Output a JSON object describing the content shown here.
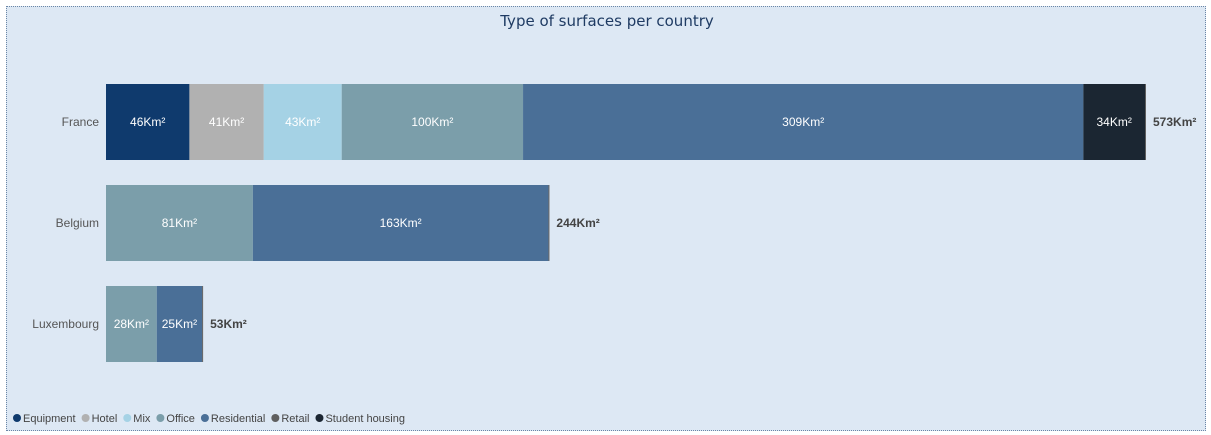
{
  "chart_data": {
    "type": "bar",
    "orientation": "horizontal",
    "stacked": true,
    "title": "Type of surfaces per country",
    "unit": "Km²",
    "categories": [
      "France",
      "Belgium",
      "Luxembourg"
    ],
    "series": [
      {
        "name": "Equipment",
        "color": "#0f3a6d",
        "label_color": "#ffffff",
        "values": [
          46,
          0,
          0
        ]
      },
      {
        "name": "Hotel",
        "color": "#b1b1b1",
        "label_color": "#ffffff",
        "values": [
          41,
          0,
          0
        ]
      },
      {
        "name": "Mix",
        "color": "#a5d2e5",
        "label_color": "#ffffff",
        "values": [
          43,
          0,
          0
        ]
      },
      {
        "name": "Office",
        "color": "#7b9eaa",
        "label_color": "#ffffff",
        "values": [
          100,
          81,
          28
        ]
      },
      {
        "name": "Residential",
        "color": "#4a6f97",
        "label_color": "#ffffff",
        "values": [
          309,
          163,
          25
        ]
      },
      {
        "name": "Retail",
        "color": "#5f5f5f",
        "label_color": "#ffffff",
        "values": [
          0,
          0,
          0
        ]
      },
      {
        "name": "Student housing",
        "color": "#1b2632",
        "label_color": "#ffffff",
        "values": [
          34,
          0,
          0
        ]
      }
    ],
    "totals": [
      573,
      244,
      53
    ],
    "xlim": [
      0,
      573
    ],
    "legend_position": "bottom-left",
    "grid": false
  }
}
